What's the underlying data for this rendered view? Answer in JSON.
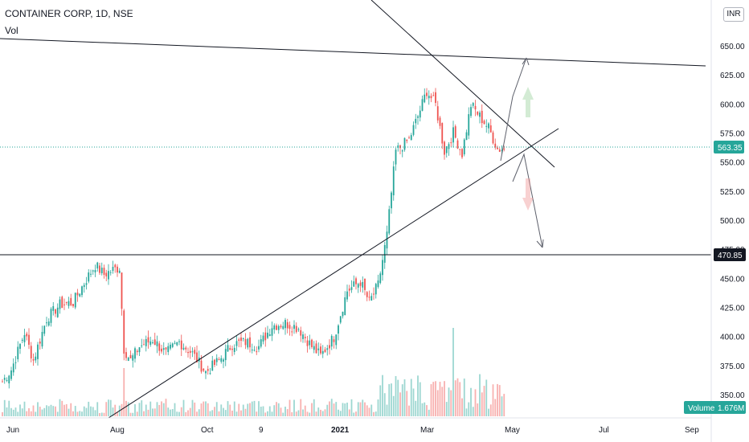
{
  "header": {
    "title": "CONTAINER CORP, 1D, NSE",
    "volume_label": "Vol",
    "currency": "INR"
  },
  "colors": {
    "up": "#26a69a",
    "down": "#ef5350",
    "line": "#131722",
    "last_price": "#26a69a",
    "volume_badge": "#26a69a"
  },
  "chart_data": {
    "type": "candlestick",
    "price_axis": {
      "ylim": [
        340,
        665
      ],
      "ticks": [
        "350.00",
        "375.00",
        "400.00",
        "425.00",
        "450.00",
        "475.00",
        "500.00",
        "525.00",
        "550.00",
        "575.00",
        "600.00",
        "625.00",
        "650.00"
      ]
    },
    "time_axis": {
      "labels": [
        "Jun",
        "Aug",
        "Oct",
        "9",
        "2021",
        "Mar",
        "May",
        "Jul",
        "Sep"
      ]
    },
    "series": [
      {
        "name": "price",
        "anchors": [
          {
            "d": 0,
            "v": 362
          },
          {
            "d": 4,
            "v": 372
          },
          {
            "d": 10,
            "v": 404
          },
          {
            "d": 14,
            "v": 380
          },
          {
            "d": 20,
            "v": 416
          },
          {
            "d": 26,
            "v": 428
          },
          {
            "d": 32,
            "v": 430
          },
          {
            "d": 38,
            "v": 450
          },
          {
            "d": 42,
            "v": 462
          },
          {
            "d": 46,
            "v": 454
          },
          {
            "d": 50,
            "v": 458
          },
          {
            "d": 53,
            "v": 460
          },
          {
            "d": 55,
            "v": 390
          },
          {
            "d": 58,
            "v": 380
          },
          {
            "d": 62,
            "v": 392
          },
          {
            "d": 68,
            "v": 398
          },
          {
            "d": 74,
            "v": 386
          },
          {
            "d": 80,
            "v": 396
          },
          {
            "d": 86,
            "v": 386
          },
          {
            "d": 92,
            "v": 370
          },
          {
            "d": 98,
            "v": 380
          },
          {
            "d": 104,
            "v": 394
          },
          {
            "d": 110,
            "v": 396
          },
          {
            "d": 116,
            "v": 392
          },
          {
            "d": 122,
            "v": 410
          },
          {
            "d": 128,
            "v": 412
          },
          {
            "d": 134,
            "v": 408
          },
          {
            "d": 140,
            "v": 392
          },
          {
            "d": 144,
            "v": 384
          },
          {
            "d": 150,
            "v": 400
          },
          {
            "d": 156,
            "v": 440
          },
          {
            "d": 162,
            "v": 448
          },
          {
            "d": 166,
            "v": 430
          },
          {
            "d": 170,
            "v": 445
          },
          {
            "d": 174,
            "v": 488
          },
          {
            "d": 178,
            "v": 560
          },
          {
            "d": 184,
            "v": 570
          },
          {
            "d": 188,
            "v": 590
          },
          {
            "d": 192,
            "v": 612
          },
          {
            "d": 196,
            "v": 600
          },
          {
            "d": 200,
            "v": 560
          },
          {
            "d": 204,
            "v": 576
          },
          {
            "d": 208,
            "v": 558
          },
          {
            "d": 212,
            "v": 600
          },
          {
            "d": 216,
            "v": 590
          },
          {
            "d": 220,
            "v": 580
          },
          {
            "d": 224,
            "v": 562
          },
          {
            "d": 227,
            "v": 562
          }
        ],
        "last_price": "563.35"
      },
      {
        "name": "volume",
        "last_value": "1.676M"
      }
    ],
    "levels": {
      "support": {
        "value": 470.85,
        "label": "470.85"
      }
    },
    "volume_badge_label": "Volume",
    "grid": false,
    "legend": "top-left"
  }
}
